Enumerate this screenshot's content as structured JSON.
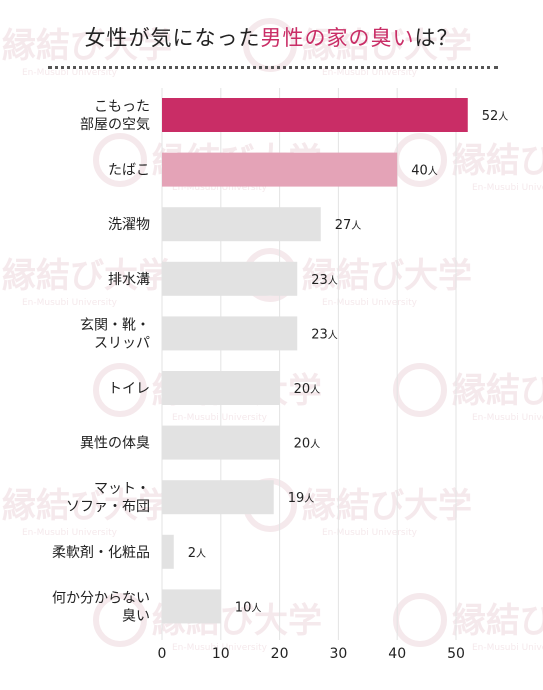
{
  "title": {
    "part1": "女性が気になった",
    "highlight": "男性の家の臭い",
    "part2": "は？"
  },
  "watermark": {
    "text": "縁結び大学",
    "subtext": "En-Musubi University"
  },
  "colors": {
    "accent": "#c92d66",
    "secondary": "#e4a3b7",
    "neutral": "#e2e2e2",
    "watermark": "#f5e9ec"
  },
  "chart_data": {
    "type": "bar",
    "orientation": "horizontal",
    "categories": [
      [
        "こもった",
        "部屋の空気"
      ],
      [
        "たばこ"
      ],
      [
        "洗濯物"
      ],
      [
        "排水溝"
      ],
      [
        "玄関・靴・",
        "スリッパ"
      ],
      [
        "トイレ"
      ],
      [
        "異性の体臭"
      ],
      [
        "マット・",
        "ソファ・布団"
      ],
      [
        "柔軟剤・化粧品"
      ],
      [
        "何か分からない",
        "臭い"
      ]
    ],
    "values": [
      52,
      40,
      27,
      23,
      23,
      20,
      20,
      19,
      2,
      10
    ],
    "unit": "人",
    "xlim": [
      0,
      55
    ],
    "xticks": [
      0,
      10,
      20,
      30,
      40,
      50
    ],
    "grid": true
  }
}
